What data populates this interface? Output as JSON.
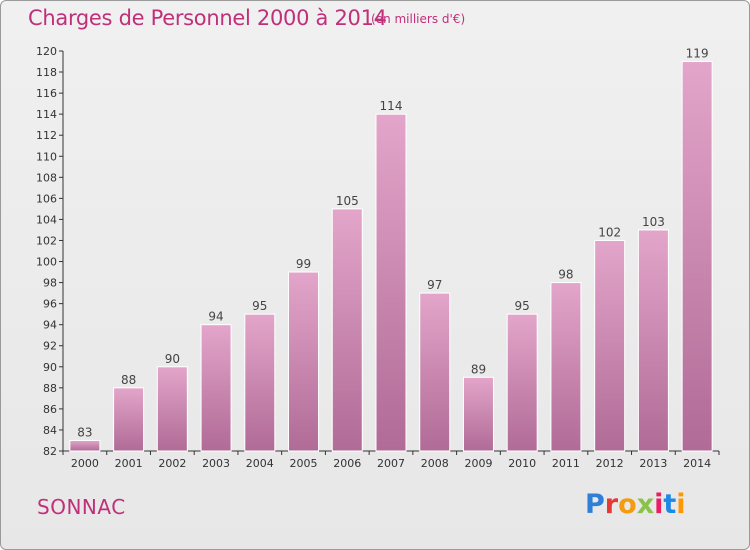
{
  "title": "Charges de Personnel 2000 à 2014",
  "subtitle": "(en milliers d'€)",
  "commune": "SONNAC",
  "brand": "Proxiti",
  "colors": {
    "title": "#c0307a",
    "bar_top": "#e3a5ca",
    "bar_bottom": "#b06b96",
    "axis": "#333333",
    "grid": "#cfcfcf"
  },
  "chart_data": {
    "type": "bar",
    "title": "Charges de Personnel 2000 à 2014",
    "subtitle": "(en milliers d'€)",
    "categories": [
      "2000",
      "2001",
      "2002",
      "2003",
      "2004",
      "2005",
      "2006",
      "2007",
      "2008",
      "2009",
      "2010",
      "2011",
      "2012",
      "2013",
      "2014"
    ],
    "values": [
      83,
      88,
      90,
      94,
      95,
      99,
      105,
      114,
      97,
      89,
      95,
      98,
      102,
      103,
      119
    ],
    "ylim": [
      82,
      120
    ],
    "yticks": [
      82,
      84,
      86,
      88,
      90,
      92,
      94,
      96,
      98,
      100,
      102,
      104,
      106,
      108,
      110,
      112,
      114,
      116,
      118,
      120
    ],
    "xlabel": "",
    "ylabel": "",
    "grid": false,
    "data_labels": true
  }
}
